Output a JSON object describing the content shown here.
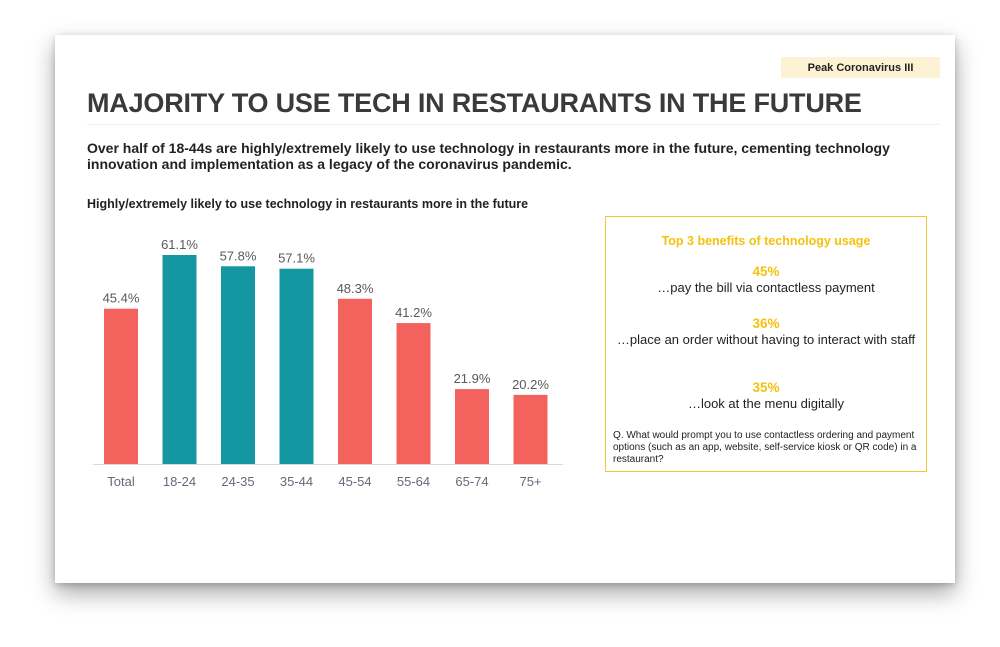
{
  "slide": {
    "tag": "Peak Coronavirus III",
    "title": "MAJORITY TO USE TECH IN RESTAURANTS IN THE FUTURE",
    "subtitle": "Over half of 18-44s are highly/extremely likely to use technology in restaurants more in the future, cementing technology innovation and implementation as a legacy of the coronavirus pandemic."
  },
  "chart_data": {
    "type": "bar",
    "title": "Highly/extremely likely to use technology in restaurants more in the future",
    "categories": [
      "Total",
      "18-24",
      "24-35",
      "35-44",
      "45-54",
      "55-64",
      "65-74",
      "75+"
    ],
    "values": [
      45.4,
      61.1,
      57.8,
      57.1,
      48.3,
      41.2,
      21.9,
      20.2
    ],
    "value_labels": [
      "45.4%",
      "61.1%",
      "57.8%",
      "57.1%",
      "48.3%",
      "41.2%",
      "21.9%",
      "20.2%"
    ],
    "highlighted": [
      false,
      true,
      true,
      true,
      false,
      false,
      false,
      false
    ],
    "ylim": [
      0,
      61.1
    ],
    "grid": false,
    "legend": "none",
    "xlabel": "",
    "ylabel": "",
    "colors": {
      "default": "#f4625e",
      "highlight": "#1497a0",
      "axis": "#d9d9d9",
      "label": "#595959",
      "tick": "#6e6579"
    }
  },
  "benefits": {
    "title": "Top 3 benefits of technology usage",
    "items": [
      {
        "pct": "45%",
        "text": "…pay the bill via contactless payment"
      },
      {
        "pct": "36%",
        "text": "…place an order without having to interact with staff"
      },
      {
        "pct": "35%",
        "text": "…look at the menu digitally"
      }
    ],
    "question": "Q. What would prompt you to use contactless ordering and payment options (such as an app, website, self-service kiosk or QR code) in a restaurant?",
    "colors": {
      "accent": "#f4c20d",
      "border": "#f2c832"
    }
  }
}
